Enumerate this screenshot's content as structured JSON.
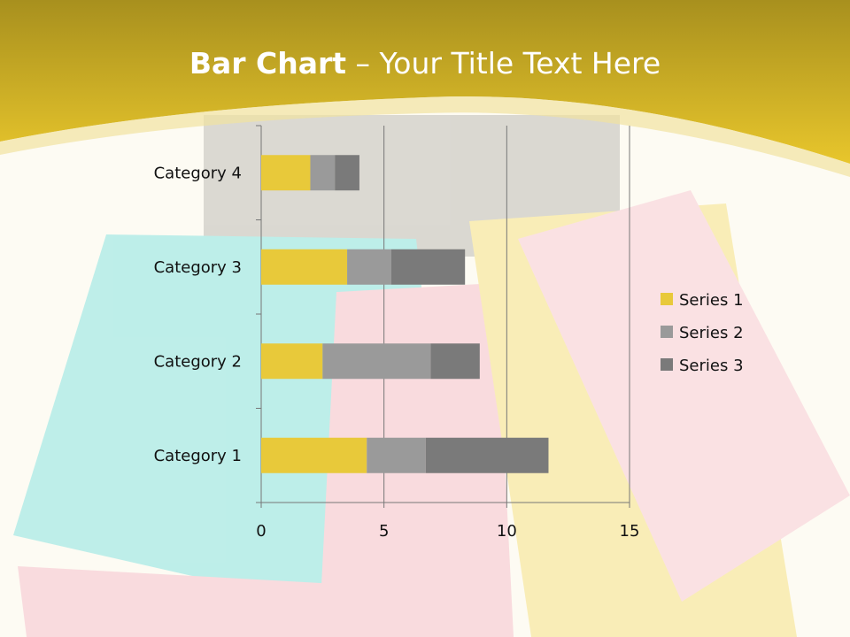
{
  "slide": {
    "title_bold": "Bar Chart",
    "title_rest": " – Your Title Text Here"
  },
  "chart_data": {
    "type": "bar",
    "orientation": "horizontal",
    "stacked": true,
    "title": "",
    "categories": [
      "Category 1",
      "Category 2",
      "Category 3",
      "Category 4"
    ],
    "series": [
      {
        "name": "Series 1",
        "values": [
          4.3,
          2.5,
          3.5,
          2
        ],
        "color": "#e8c93a"
      },
      {
        "name": "Series 2",
        "values": [
          2.4,
          4.4,
          1.8,
          1
        ],
        "color": "#9a9a9a"
      },
      {
        "name": "Series 3",
        "values": [
          5,
          2,
          3,
          1
        ],
        "color": "#7a7a7a"
      }
    ],
    "xlim": [
      0,
      15
    ],
    "xticks": [
      0,
      5,
      10,
      15
    ],
    "grid": "vertical",
    "legend": "right"
  }
}
